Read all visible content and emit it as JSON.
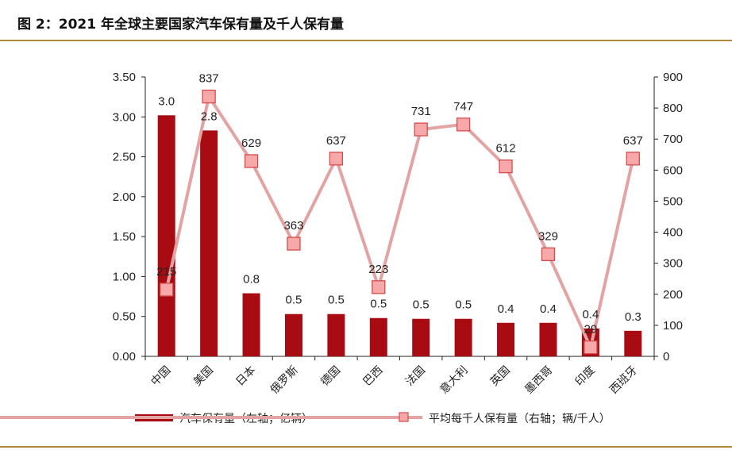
{
  "header": {
    "title": "图 2：2021 年全球主要国家汽车保有量及千人保有量"
  },
  "colors": {
    "bar": "#a80c12",
    "line": "#e3a3a3",
    "marker_fill": "#f7a8a8",
    "marker_edge": "#d84a4a",
    "rule": "#b08a3a"
  },
  "chart_data": {
    "type": "bar",
    "title": "图 2：2021 年全球主要国家汽车保有量及千人保有量",
    "categories": [
      "中国",
      "美国",
      "日本",
      "俄罗斯",
      "德国",
      "巴西",
      "法国",
      "意大利",
      "英国",
      "墨西哥",
      "印度",
      "西班牙"
    ],
    "series": [
      {
        "name": "汽车保有量（左轴；亿辆）",
        "type": "bar",
        "axis": "left",
        "values": [
          3.02,
          2.83,
          0.79,
          0.53,
          0.53,
          0.48,
          0.47,
          0.47,
          0.42,
          0.42,
          0.35,
          0.32
        ],
        "labels": [
          "3.0",
          "2.8",
          "0.8",
          "0.5",
          "0.5",
          "0.5",
          "0.5",
          "0.5",
          "0.4",
          "0.4",
          "0.4",
          "0.3"
        ]
      },
      {
        "name": "平均每千人保有量（右轴；辆/千人）",
        "type": "line",
        "axis": "right",
        "values": [
          215,
          837,
          629,
          363,
          637,
          223,
          731,
          747,
          612,
          329,
          29,
          637
        ],
        "labels": [
          "215",
          "837",
          "629",
          "363",
          "637",
          "223",
          "731",
          "747",
          "612",
          "329",
          "29",
          "637"
        ]
      }
    ],
    "y_left": {
      "lim": [
        0,
        3.5
      ],
      "ticks": [
        "0.00",
        "0.50",
        "1.00",
        "1.50",
        "2.00",
        "2.50",
        "3.00",
        "3.50"
      ]
    },
    "y_right": {
      "lim": [
        0,
        900
      ],
      "ticks": [
        "0",
        "100",
        "200",
        "300",
        "400",
        "500",
        "600",
        "700",
        "800",
        "900"
      ]
    },
    "grid": false,
    "legend": "bottom"
  }
}
